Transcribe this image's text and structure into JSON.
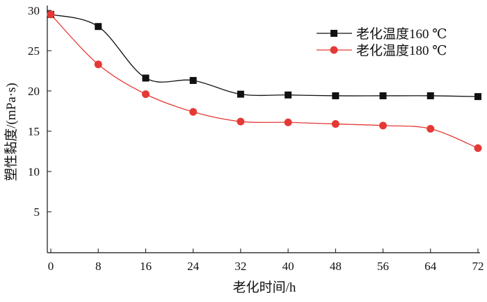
{
  "chart_data": {
    "type": "line",
    "title": "",
    "xlabel": "老化时间/h",
    "ylabel": "塑性黏度/(mPa·s)",
    "xlim": [
      0,
      72
    ],
    "ylim": [
      0,
      30
    ],
    "xticks": [
      0,
      8,
      16,
      24,
      32,
      40,
      48,
      56,
      64,
      72
    ],
    "yticks": [
      5,
      10,
      15,
      20,
      25,
      30
    ],
    "x": [
      0,
      8,
      16,
      24,
      32,
      40,
      48,
      56,
      64,
      72
    ],
    "legend_position": "top-right",
    "grid": false,
    "series": [
      {
        "name": "老化温度160 ℃",
        "color": "#111111",
        "marker": "square",
        "values": [
          29.5,
          28.0,
          21.6,
          21.3,
          19.6,
          19.5,
          19.4,
          19.4,
          19.4,
          19.3
        ]
      },
      {
        "name": "老化温度180 ℃",
        "color": "#e53935",
        "marker": "circle",
        "values": [
          29.5,
          23.3,
          19.6,
          17.4,
          16.2,
          16.1,
          15.9,
          15.7,
          15.3,
          12.9
        ]
      }
    ]
  }
}
